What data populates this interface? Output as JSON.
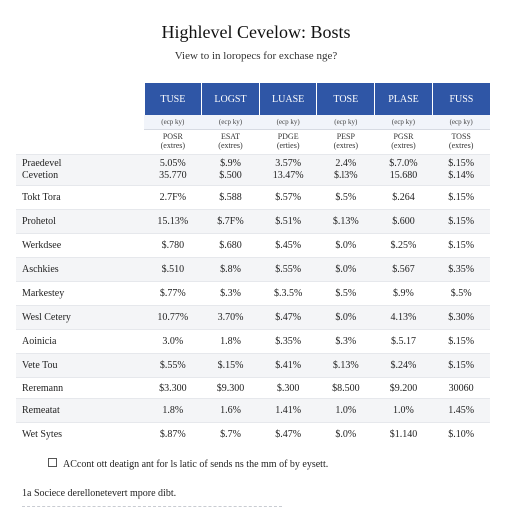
{
  "title": "Highlevel Cevelow: Bosts",
  "subtitle": "View to in loropecs for exchase nge?",
  "columns": [
    {
      "head": "TUSE",
      "sub": "(ecp ky)",
      "metric_top": "POSR",
      "metric_bottom": "(extres)"
    },
    {
      "head": "LOGST",
      "sub": "(ecp ky)",
      "metric_top": "ESAT",
      "metric_bottom": "(extres)"
    },
    {
      "head": "LUASE",
      "sub": "(ecp ky)",
      "metric_top": "PDGE",
      "metric_bottom": "(erties)"
    },
    {
      "head": "TOSE",
      "sub": "(ecp ky)",
      "metric_top": "PESP",
      "metric_bottom": "(extres)"
    },
    {
      "head": "PLASE",
      "sub": "(ecp ky)",
      "metric_top": "PGSR",
      "metric_bottom": "(extres)"
    },
    {
      "head": "FUSS",
      "sub": "(ecp ky)",
      "metric_top": "TOSS",
      "metric_bottom": "(extres)"
    }
  ],
  "rows": [
    {
      "label": [
        "Praedevel",
        "Cevetion"
      ],
      "values": [
        [
          "5.05%",
          "35.770"
        ],
        [
          "$.9%",
          "$.500"
        ],
        [
          "3.57%",
          "13.47%"
        ],
        [
          "2.4%",
          "$.l3%"
        ],
        [
          "$.7.0%",
          "15.680"
        ],
        [
          "$.15%",
          "$.14%"
        ]
      ]
    },
    {
      "label": [
        "Tokt Tora"
      ],
      "values": [
        [
          "2.7F%"
        ],
        [
          "$.588"
        ],
        [
          "$.57%"
        ],
        [
          "$.5%"
        ],
        [
          "$.264"
        ],
        [
          "$.15%"
        ]
      ]
    },
    {
      "label": [
        "Prohetol"
      ],
      "values": [
        [
          "15.13%"
        ],
        [
          "$.7F%"
        ],
        [
          "$.51%"
        ],
        [
          "$.13%"
        ],
        [
          "$.600"
        ],
        [
          "$.15%"
        ]
      ]
    },
    {
      "label": [
        "Werkdsee"
      ],
      "values": [
        [
          "$.780"
        ],
        [
          "$.680"
        ],
        [
          "$.45%"
        ],
        [
          "$.0%"
        ],
        [
          "$.25%"
        ],
        [
          "$.15%"
        ]
      ]
    },
    {
      "label": [
        "Aschkies"
      ],
      "values": [
        [
          "$.510"
        ],
        [
          "$.8%"
        ],
        [
          "$.55%"
        ],
        [
          "$.0%"
        ],
        [
          "$.567"
        ],
        [
          "$.35%"
        ]
      ]
    },
    {
      "label": [
        "Markestey"
      ],
      "values": [
        [
          "$.77%"
        ],
        [
          "$.3%"
        ],
        [
          "$.3.5%"
        ],
        [
          "$.5%"
        ],
        [
          "$.9%"
        ],
        [
          "$.5%"
        ]
      ]
    },
    {
      "label": [
        "Wesl Cetery"
      ],
      "values": [
        [
          "10.77%"
        ],
        [
          "3.70%"
        ],
        [
          "$.47%"
        ],
        [
          "$.0%"
        ],
        [
          "4.13%"
        ],
        [
          "$.30%"
        ]
      ]
    },
    {
      "label": [
        "Aoinicia"
      ],
      "values": [
        [
          "3.0%"
        ],
        [
          "1.8%"
        ],
        [
          "$.35%"
        ],
        [
          "$.3%"
        ],
        [
          "$.5.17"
        ],
        [
          "$.15%"
        ]
      ]
    },
    {
      "label": [
        "Vete Tou"
      ],
      "values": [
        [
          "$.55%"
        ],
        [
          "$.15%"
        ],
        [
          "$.41%"
        ],
        [
          "$.13%"
        ],
        [
          "$.24%"
        ],
        [
          "$.15%"
        ]
      ]
    },
    {
      "label": [
        "Reremann"
      ],
      "values": [
        [
          "$3.300"
        ],
        [
          "$9.300"
        ],
        [
          "$.300"
        ],
        [
          "$8.500"
        ],
        [
          "$9.200"
        ],
        [
          "30060"
        ]
      ]
    },
    {
      "label": [
        "Remeatat"
      ],
      "values": [
        [
          "1.8%"
        ],
        [
          "1.6%"
        ],
        [
          "1.41%"
        ],
        [
          "1.0%"
        ],
        [
          "1.0%"
        ],
        [
          "1.45%"
        ]
      ]
    },
    {
      "label": [
        "Wet Sytes"
      ],
      "values": [
        [
          "$.87%"
        ],
        [
          "$.7%"
        ],
        [
          "$.47%"
        ],
        [
          "$.0%"
        ],
        [
          "$1.140"
        ],
        [
          "$.10%"
        ]
      ]
    }
  ],
  "row_styles": [
    "double shade",
    "single",
    "single shade",
    "single",
    "single shade",
    "single",
    "single shade",
    "single",
    "single shade",
    "single gapped",
    "single shade",
    "single"
  ],
  "footnote": "ACcont ott deatign ant for ls latic of sends ns the mm of by eysett.",
  "source": "1a Sociece derellonetevert mpore dibt."
}
